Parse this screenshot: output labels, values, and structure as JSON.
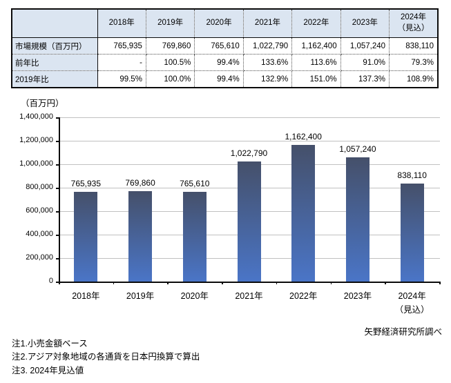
{
  "table": {
    "corner_label": "",
    "col_headers": [
      "2018年",
      "2019年",
      "2020年",
      "2021年",
      "2022年",
      "2023年",
      "2024年\n（見込）"
    ],
    "rows": [
      {
        "label": "市場規模（百万円）",
        "values": [
          "765,935",
          "769,860",
          "765,610",
          "1,022,790",
          "1,162,400",
          "1,057,240",
          "838,110"
        ]
      },
      {
        "label": "前年比",
        "values": [
          "-",
          "100.5%",
          "99.4%",
          "133.6%",
          "113.6%",
          "91.0%",
          "79.3%"
        ]
      },
      {
        "label": "2019年比",
        "values": [
          "99.5%",
          "100.0%",
          "99.4%",
          "132.9%",
          "151.0%",
          "137.3%",
          "108.9%"
        ]
      }
    ]
  },
  "chart_data": {
    "type": "bar",
    "title": "",
    "ylabel": "（百万円）",
    "xlabel": "",
    "categories": [
      "2018年",
      "2019年",
      "2020年",
      "2021年",
      "2022年",
      "2023年",
      "2024年\n（見込）"
    ],
    "values": [
      765935,
      769860,
      765610,
      1022790,
      1162400,
      1057240,
      838110
    ],
    "value_labels": [
      "765,935",
      "769,860",
      "765,610",
      "1,022,790",
      "1,162,400",
      "1,057,240",
      "838,110"
    ],
    "ylim": [
      0,
      1400000
    ],
    "ytick_step": 200000,
    "ytick_labels": [
      "0",
      "200,000",
      "400,000",
      "600,000",
      "800,000",
      "1,000,000",
      "1,200,000",
      "1,400,000"
    ],
    "grid": true,
    "legend": "none",
    "colors": {
      "bar_top": "#45506a",
      "bar_bottom": "#4a75c7",
      "gridline": "#c0c0c0",
      "axis": "#0a0a0a",
      "table_header_fill": "#dbe5f1"
    }
  },
  "footer": {
    "source": "矢野経済研究所調べ",
    "notes": [
      "注1.小売金額ベース",
      "注2.アジア対象地域の各通貨を日本円換算で算出",
      "注3. 2024年見込値"
    ]
  }
}
